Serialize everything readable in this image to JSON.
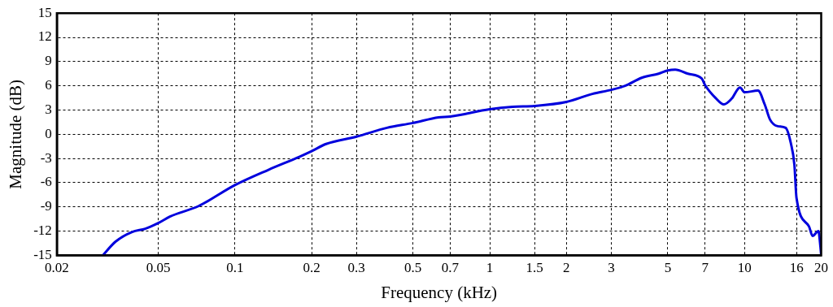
{
  "chart_data": {
    "type": "line",
    "xlabel": "Frequency (kHz)",
    "ylabel": "Magnitude (dB)",
    "log": "x",
    "grid": true,
    "legend": false,
    "marker": "none",
    "line_style": "solid",
    "xlim": [
      0.02,
      20
    ],
    "xticks": [
      0.02,
      0.05,
      0.1,
      0.2,
      0.3,
      0.5,
      0.7,
      1,
      1.5,
      2,
      3,
      5,
      7,
      10,
      16,
      20
    ],
    "ylim": [
      -15,
      15
    ],
    "yticks": [
      -15,
      -12,
      -9,
      -6,
      -3,
      0,
      3,
      6,
      9,
      12,
      15
    ],
    "series": [
      {
        "color": "#0000dd",
        "x": [
          0.0303,
          0.034,
          0.0395,
          0.0445,
          0.05,
          0.0556,
          0.072,
          0.1,
          0.1355,
          0.179,
          0.2,
          0.228,
          0.3,
          0.395,
          0.5,
          0.63,
          0.7,
          1,
          1.23,
          1.5,
          2,
          2.53,
          3,
          3.4,
          3.95,
          4.6,
          5,
          5.35,
          6,
          6.8,
          7,
          7.7,
          8.3,
          8.9,
          9.6,
          10,
          11.3,
          12,
          12.6,
          13.5,
          14.5,
          15.2,
          15.7,
          16,
          17.9,
          18.5,
          19.5,
          19.8,
          20
        ],
        "values": [
          -15,
          -13.3,
          -12.1,
          -11.7,
          -11,
          -10.2,
          -8.9,
          -6.3,
          -4.4,
          -2.8,
          -2.1,
          -1.2,
          -0.3,
          0.8,
          1.4,
          2.1,
          2.2,
          3.1,
          3.4,
          3.5,
          4,
          5,
          5.5,
          6,
          7,
          7.5,
          7.9,
          8,
          7.5,
          6.9,
          6.1,
          4.5,
          3.7,
          4.4,
          5.8,
          5.2,
          5.4,
          3.7,
          1.8,
          1,
          0.8,
          -1.1,
          -3.8,
          -7.9,
          -11.4,
          -12.6,
          -12,
          -13.5,
          -15
        ]
      }
    ]
  }
}
